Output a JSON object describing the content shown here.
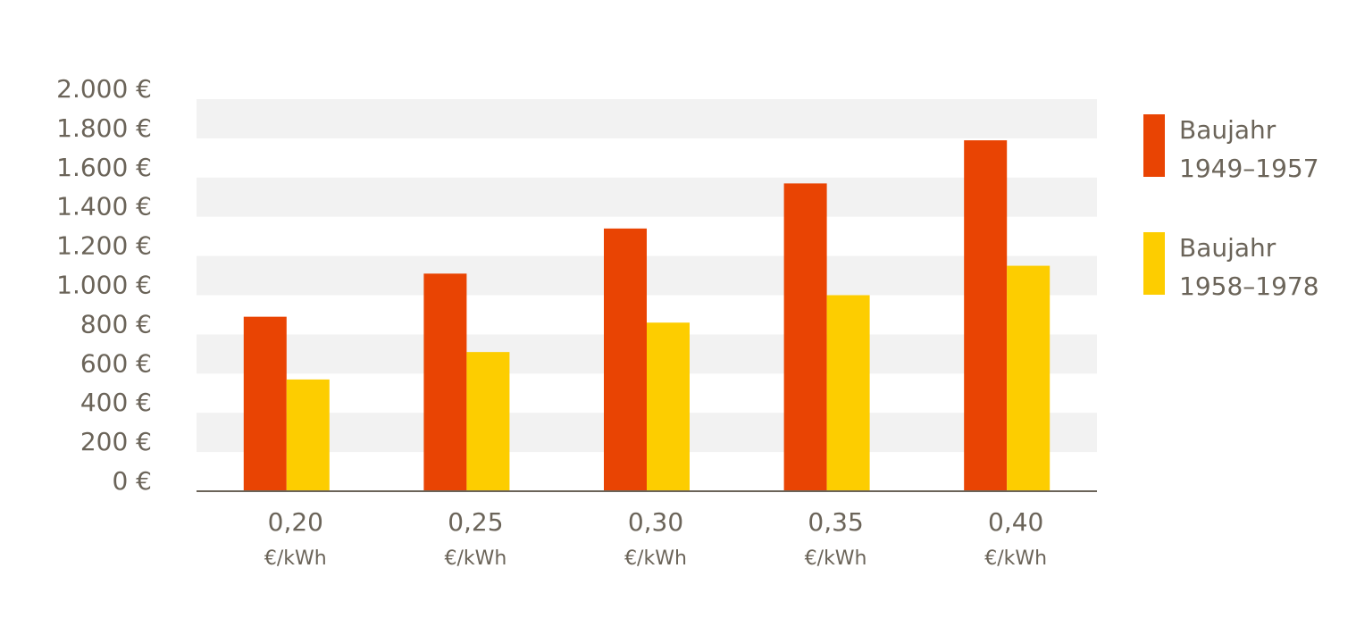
{
  "chart_data": {
    "type": "bar",
    "categories": [
      "0,20",
      "0,25",
      "0,30",
      "0,35",
      "0,40"
    ],
    "x_unit": "€/kWh",
    "series": [
      {
        "name": "Baujahr 1949–1957",
        "color": "#e94403",
        "values": [
          890,
          1110,
          1340,
          1570,
          1790
        ]
      },
      {
        "name": "Baujahr 1958–1978",
        "color": "#fdcd00",
        "values": [
          570,
          710,
          860,
          1000,
          1150
        ]
      }
    ],
    "ylim": [
      0,
      2000
    ],
    "yticks": [
      {
        "value": 0,
        "label": "0 €"
      },
      {
        "value": 200,
        "label": "200 €"
      },
      {
        "value": 400,
        "label": "400 €"
      },
      {
        "value": 600,
        "label": "600 €"
      },
      {
        "value": 800,
        "label": "800 €"
      },
      {
        "value": 1000,
        "label": "1.000 €"
      },
      {
        "value": 1200,
        "label": "1.200 €"
      },
      {
        "value": 1400,
        "label": "1.400 €"
      },
      {
        "value": 1600,
        "label": "1.600 €"
      },
      {
        "value": 1800,
        "label": "1.800 €"
      },
      {
        "value": 2000,
        "label": "2.000 €"
      }
    ],
    "grid": "bands",
    "legend": "right"
  }
}
